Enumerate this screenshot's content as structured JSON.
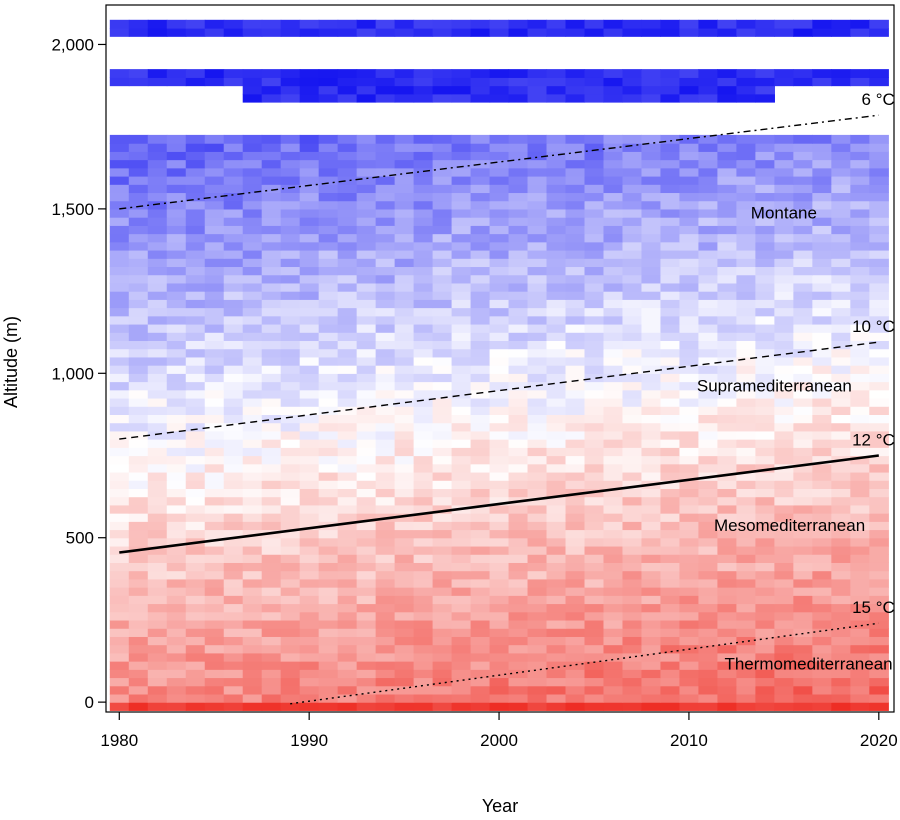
{
  "chart_data": {
    "type": "heatmap",
    "title": "",
    "xlabel": "Year",
    "ylabel": "Altitude (m)",
    "xlim": [
      1979.3,
      2020.8
    ],
    "ylim": [
      -30,
      2120
    ],
    "x_ticks": [
      1980,
      1990,
      2000,
      2010,
      2020
    ],
    "x_tick_labels": [
      "1980",
      "1990",
      "2000",
      "2010",
      "2020"
    ],
    "y_ticks": [
      0,
      500,
      1000,
      1500,
      2000
    ],
    "y_tick_labels": [
      "0",
      "500",
      "1,000",
      "1,500",
      "2,000"
    ],
    "grid": false,
    "legend": "none",
    "colormap": {
      "low": "#ee2b22",
      "mid": "#ffffff",
      "high": "#1414f0",
      "meaning": "red = lower altitude band, blue = higher altitude band"
    },
    "isotherms": [
      {
        "label": "6 °C",
        "style": "dashdot",
        "x": [
          1980,
          2020
        ],
        "y": [
          1500,
          1785
        ]
      },
      {
        "label": "10 °C",
        "style": "dashed",
        "x": [
          1980,
          2020
        ],
        "y": [
          800,
          1095
        ]
      },
      {
        "label": "12 °C",
        "style": "solid",
        "x": [
          1980,
          2020
        ],
        "y": [
          455,
          750
        ]
      },
      {
        "label": "15 °C",
        "style": "dotted",
        "x": [
          1989,
          2020
        ],
        "y": [
          -5,
          240
        ]
      }
    ],
    "zones": [
      {
        "label": "Montane",
        "x": 2015,
        "y": 1470
      },
      {
        "label": "Supramediterranean",
        "x": 2014.5,
        "y": 945
      },
      {
        "label": "Mesomediterranean",
        "x": 2015.3,
        "y": 520
      },
      {
        "label": "Thermomediterranean",
        "x": 2016.3,
        "y": 100
      }
    ]
  }
}
